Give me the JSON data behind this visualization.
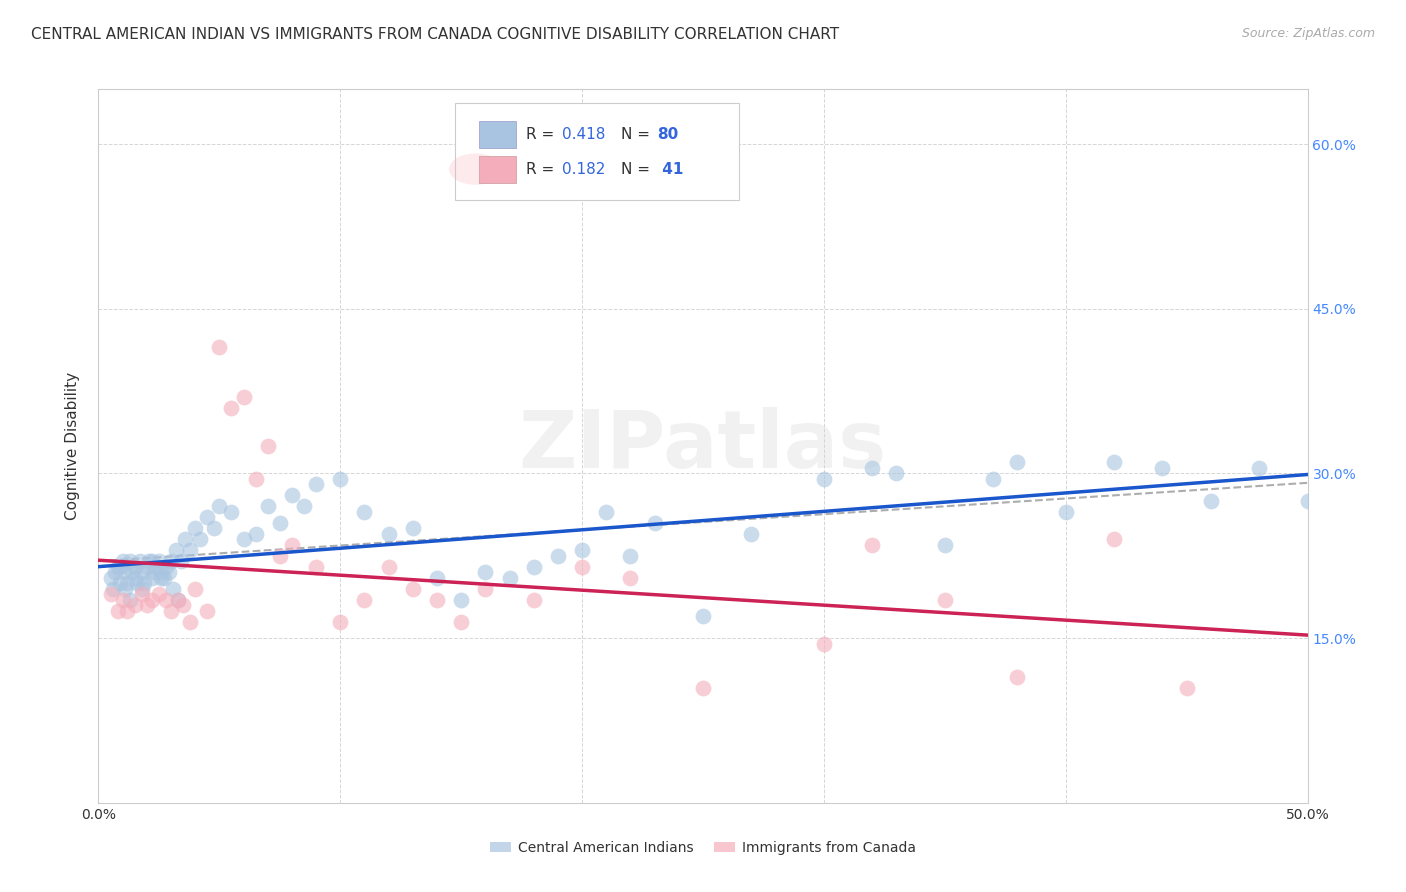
{
  "title": "CENTRAL AMERICAN INDIAN VS IMMIGRANTS FROM CANADA COGNITIVE DISABILITY CORRELATION CHART",
  "source": "Source: ZipAtlas.com",
  "ylabel": "Cognitive Disability",
  "xlim": [
    0.0,
    0.5
  ],
  "ylim": [
    0.0,
    0.65
  ],
  "legend1_R": "0.418",
  "legend1_N": "80",
  "legend2_R": "0.182",
  "legend2_N": "41",
  "legend1_color": "#A8C4E0",
  "legend2_color": "#F4AEBB",
  "blue_line_color": "#1a56cc",
  "pink_line_color": "#cc2255",
  "dash_line_color": "#999999",
  "background_color": "#FFFFFF",
  "grid_color": "#CCCCCC",
  "title_fontsize": 11,
  "source_fontsize": 9,
  "watermark": "ZIPatlas",
  "right_tick_color": "#4488FF",
  "blue_scatter_x": [
    0.005,
    0.007,
    0.008,
    0.009,
    0.01,
    0.011,
    0.012,
    0.013,
    0.014,
    0.015,
    0.016,
    0.017,
    0.018,
    0.019,
    0.02,
    0.021,
    0.022,
    0.023,
    0.024,
    0.025,
    0.026,
    0.027,
    0.028,
    0.029,
    0.03,
    0.032,
    0.034,
    0.036,
    0.038,
    0.04,
    0.042,
    0.045,
    0.048,
    0.05,
    0.055,
    0.06,
    0.065,
    0.07,
    0.075,
    0.08,
    0.085,
    0.09,
    0.1,
    0.11,
    0.12,
    0.13,
    0.14,
    0.15,
    0.16,
    0.17,
    0.18,
    0.19,
    0.2,
    0.21,
    0.22,
    0.23,
    0.25,
    0.27,
    0.3,
    0.32,
    0.33,
    0.35,
    0.37,
    0.38,
    0.4,
    0.42,
    0.44,
    0.46,
    0.48,
    0.5,
    0.006,
    0.009,
    0.011,
    0.013,
    0.015,
    0.018,
    0.022,
    0.026,
    0.031,
    0.033
  ],
  "blue_scatter_y": [
    0.205,
    0.21,
    0.215,
    0.2,
    0.22,
    0.21,
    0.2,
    0.22,
    0.21,
    0.215,
    0.2,
    0.22,
    0.21,
    0.2,
    0.215,
    0.22,
    0.205,
    0.21,
    0.215,
    0.22,
    0.21,
    0.205,
    0.215,
    0.21,
    0.22,
    0.23,
    0.22,
    0.24,
    0.23,
    0.25,
    0.24,
    0.26,
    0.25,
    0.27,
    0.265,
    0.24,
    0.245,
    0.27,
    0.255,
    0.28,
    0.27,
    0.29,
    0.295,
    0.265,
    0.245,
    0.25,
    0.205,
    0.185,
    0.21,
    0.205,
    0.215,
    0.225,
    0.23,
    0.265,
    0.225,
    0.255,
    0.17,
    0.245,
    0.295,
    0.305,
    0.3,
    0.235,
    0.295,
    0.31,
    0.265,
    0.31,
    0.305,
    0.275,
    0.305,
    0.275,
    0.195,
    0.215,
    0.195,
    0.185,
    0.205,
    0.195,
    0.22,
    0.205,
    0.195,
    0.185
  ],
  "pink_scatter_x": [
    0.005,
    0.008,
    0.01,
    0.012,
    0.015,
    0.018,
    0.02,
    0.022,
    0.025,
    0.028,
    0.03,
    0.033,
    0.035,
    0.038,
    0.04,
    0.045,
    0.05,
    0.055,
    0.06,
    0.065,
    0.07,
    0.075,
    0.08,
    0.09,
    0.1,
    0.11,
    0.12,
    0.13,
    0.14,
    0.15,
    0.16,
    0.18,
    0.2,
    0.22,
    0.25,
    0.3,
    0.32,
    0.35,
    0.38,
    0.42,
    0.45
  ],
  "pink_scatter_y": [
    0.19,
    0.175,
    0.185,
    0.175,
    0.18,
    0.19,
    0.18,
    0.185,
    0.19,
    0.185,
    0.175,
    0.185,
    0.18,
    0.165,
    0.195,
    0.175,
    0.415,
    0.36,
    0.37,
    0.295,
    0.325,
    0.225,
    0.235,
    0.215,
    0.165,
    0.185,
    0.215,
    0.195,
    0.185,
    0.165,
    0.195,
    0.185,
    0.215,
    0.205,
    0.105,
    0.145,
    0.235,
    0.185,
    0.115,
    0.24,
    0.105
  ]
}
